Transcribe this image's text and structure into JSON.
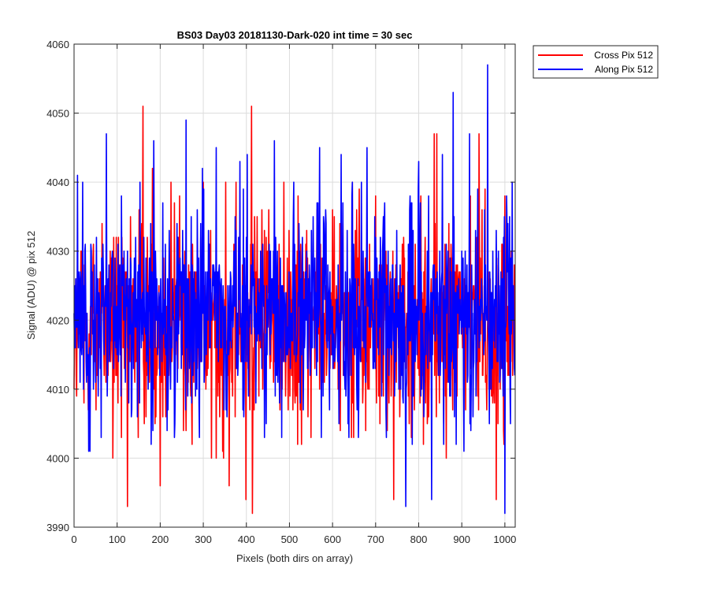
{
  "chart_data": {
    "type": "line",
    "title": "BS03 Day03 20181130-Dark-020 int time = 30 sec",
    "xlabel": "Pixels (both dirs on array)",
    "ylabel": "Signal (ADU) @ pix 512",
    "xlim": [
      0,
      1024
    ],
    "ylim": [
      3990,
      4060
    ],
    "xticks": [
      0,
      100,
      200,
      300,
      400,
      500,
      600,
      700,
      800,
      900,
      1000
    ],
    "yticks": [
      3990,
      4000,
      4010,
      4020,
      4030,
      4040,
      4050,
      4060
    ],
    "grid": true,
    "legend_position": "outside top-right",
    "n_points": 1024,
    "series": [
      {
        "name": "Cross Pix 512",
        "color": "#ff0000",
        "mean": 4019.5,
        "min": 3992,
        "max": 4051,
        "anchors": [
          [
            124,
            3993
          ],
          [
            160,
            4051
          ],
          [
            182,
            4042
          ],
          [
            200,
            3996
          ],
          [
            225,
            4040
          ],
          [
            245,
            4038
          ],
          [
            300,
            4040
          ],
          [
            352,
            4040
          ],
          [
            360,
            3996
          ],
          [
            376,
            4040
          ],
          [
            399,
            3994
          ],
          [
            412,
            4051
          ],
          [
            414,
            3992
          ],
          [
            436,
            4036
          ],
          [
            452,
            4036
          ],
          [
            487,
            4040
          ],
          [
            520,
            4038
          ],
          [
            600,
            4036
          ],
          [
            646,
            4040
          ],
          [
            700,
            4038
          ],
          [
            742,
            3994
          ],
          [
            836,
            4047
          ],
          [
            842,
            4047
          ],
          [
            920,
            4038
          ],
          [
            940,
            4047
          ],
          [
            980,
            3994
          ],
          [
            1000,
            4038
          ]
        ]
      },
      {
        "name": "Along Pix 512",
        "color": "#0000ff",
        "mean": 4020.5,
        "min": 3992,
        "max": 4057,
        "anchors": [
          [
            8,
            4041
          ],
          [
            20,
            4040
          ],
          [
            40,
            4030
          ],
          [
            75,
            4047
          ],
          [
            110,
            4038
          ],
          [
            185,
            4046
          ],
          [
            260,
            4049
          ],
          [
            272,
            4035
          ],
          [
            298,
            4042
          ],
          [
            330,
            4045
          ],
          [
            385,
            4043
          ],
          [
            402,
            4044
          ],
          [
            465,
            4046
          ],
          [
            510,
            4040
          ],
          [
            570,
            4045
          ],
          [
            620,
            4044
          ],
          [
            680,
            4045
          ],
          [
            770,
            3993
          ],
          [
            800,
            4043
          ],
          [
            830,
            3994
          ],
          [
            855,
            4044
          ],
          [
            880,
            4053
          ],
          [
            918,
            4047
          ],
          [
            960,
            4057
          ],
          [
            1000,
            3992
          ],
          [
            1017,
            4040
          ]
        ]
      }
    ]
  }
}
